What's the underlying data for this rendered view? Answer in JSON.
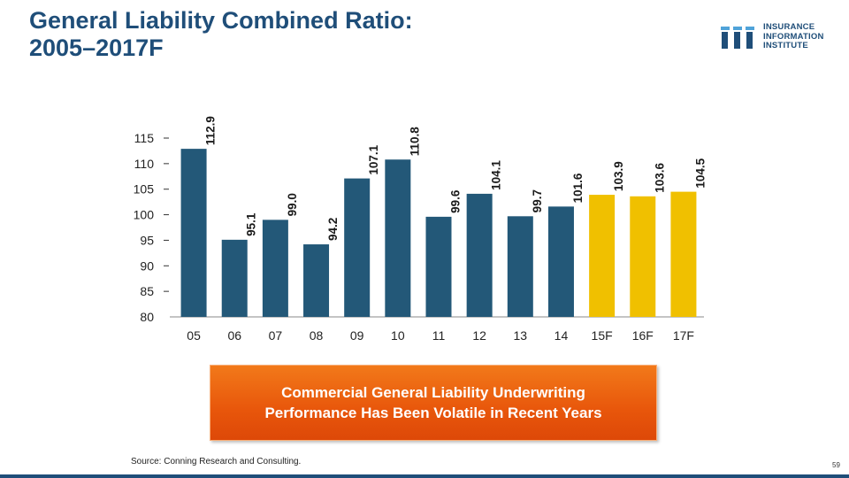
{
  "title": {
    "line1": "General Liability Combined Ratio:",
    "line2": "2005–2017F"
  },
  "logo": {
    "line1": "INSURANCE",
    "line2": "INFORMATION",
    "line3": "INSTITUTE",
    "mark": "III"
  },
  "chart_data": {
    "type": "bar",
    "title": "General Liability Combined Ratio: 2005–2017F",
    "xlabel": "",
    "ylabel": "",
    "categories": [
      "05",
      "06",
      "07",
      "08",
      "09",
      "10",
      "11",
      "12",
      "13",
      "14",
      "15F",
      "16F",
      "17F"
    ],
    "values": [
      112.9,
      95.1,
      99.0,
      94.2,
      107.1,
      110.8,
      99.6,
      104.1,
      99.7,
      101.6,
      103.9,
      103.6,
      104.5
    ],
    "labels": [
      "112.9",
      "95.1",
      "99.0",
      "94.2",
      "107.1",
      "110.8",
      "99.6",
      "104.1",
      "99.7",
      "101.6",
      "103.9",
      "103.6",
      "104.5"
    ],
    "ylim": [
      80,
      115
    ],
    "yticks": [
      80,
      85,
      90,
      95,
      100,
      105,
      110,
      115
    ],
    "grid": false,
    "legend": "none",
    "forecast_start_index": 10,
    "colors": {
      "actual": "#235878",
      "forecast": "#F0C000"
    }
  },
  "callout": {
    "line1": "Commercial General Liability Underwriting",
    "line2": "Performance Has Been Volatile in Recent Years"
  },
  "source": "Source: Conning Research and Consulting.",
  "page_number": "59",
  "colors": {
    "title": "#1F4E79",
    "callout": "#E8560B",
    "bottom_bar": "#1F4E79"
  }
}
